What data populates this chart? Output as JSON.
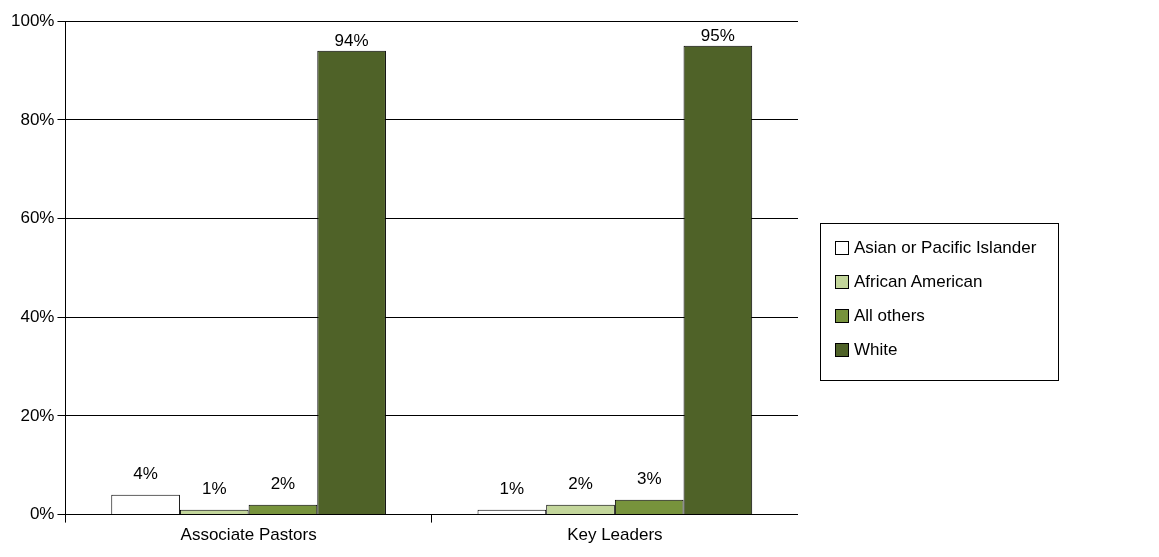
{
  "chart_data": {
    "type": "bar",
    "categories": [
      "Associate Pastors",
      "Key Leaders"
    ],
    "series": [
      {
        "name": "Asian or Pacific Islander",
        "color": "#ffffff",
        "values": [
          4,
          1
        ],
        "value_labels": [
          "4%",
          "1%"
        ]
      },
      {
        "name": "African American",
        "color": "#c3d69b",
        "values": [
          1,
          2
        ],
        "value_labels": [
          "1%",
          "2%"
        ]
      },
      {
        "name": "All others",
        "color": "#77933c",
        "values": [
          2,
          3
        ],
        "value_labels": [
          "2%",
          "3%"
        ]
      },
      {
        "name": "White",
        "color": "#4f6228",
        "values": [
          94,
          95
        ],
        "value_labels": [
          "94%",
          "95%"
        ]
      }
    ],
    "ylim": [
      0,
      100
    ],
    "yticks": [
      {
        "value": 0,
        "label": "0%"
      },
      {
        "value": 20,
        "label": "20%"
      },
      {
        "value": 40,
        "label": "40%"
      },
      {
        "value": 60,
        "label": "60%"
      },
      {
        "value": 80,
        "label": "80%"
      },
      {
        "value": 100,
        "label": "100%"
      }
    ],
    "grid": "y",
    "legend": "right"
  }
}
